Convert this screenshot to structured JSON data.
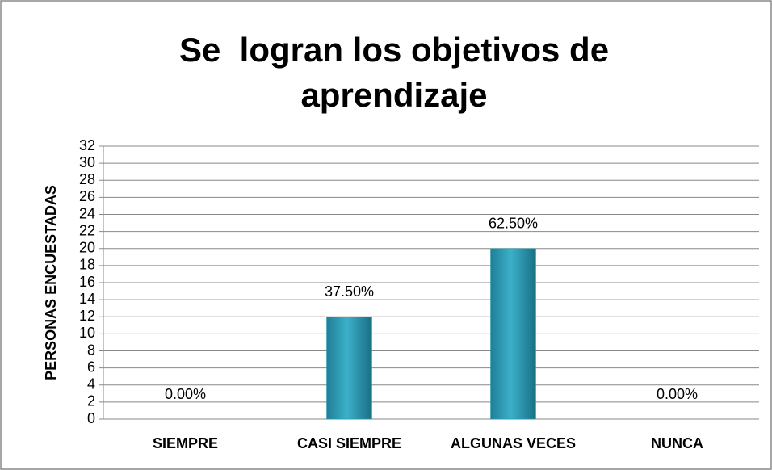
{
  "chart_data": {
    "type": "bar",
    "title": "Se  logran los objetivos de aprendizaje",
    "y_label": "PERSONAS ENCUESTADAS",
    "categories": [
      "SIEMPRE",
      "CASI SIEMPRE",
      "ALGUNAS VECES",
      "NUNCA"
    ],
    "values": [
      0,
      12,
      20,
      0
    ],
    "value_labels": [
      "0.00%",
      "37.50%",
      "62.50%",
      "0.00%"
    ],
    "color": "#2a9bb5",
    "ylim": [
      0,
      32
    ],
    "yticks": [
      0,
      2,
      4,
      6,
      8,
      10,
      12,
      14,
      16,
      18,
      20,
      22,
      24,
      26,
      28,
      30,
      32
    ],
    "grid": true
  }
}
